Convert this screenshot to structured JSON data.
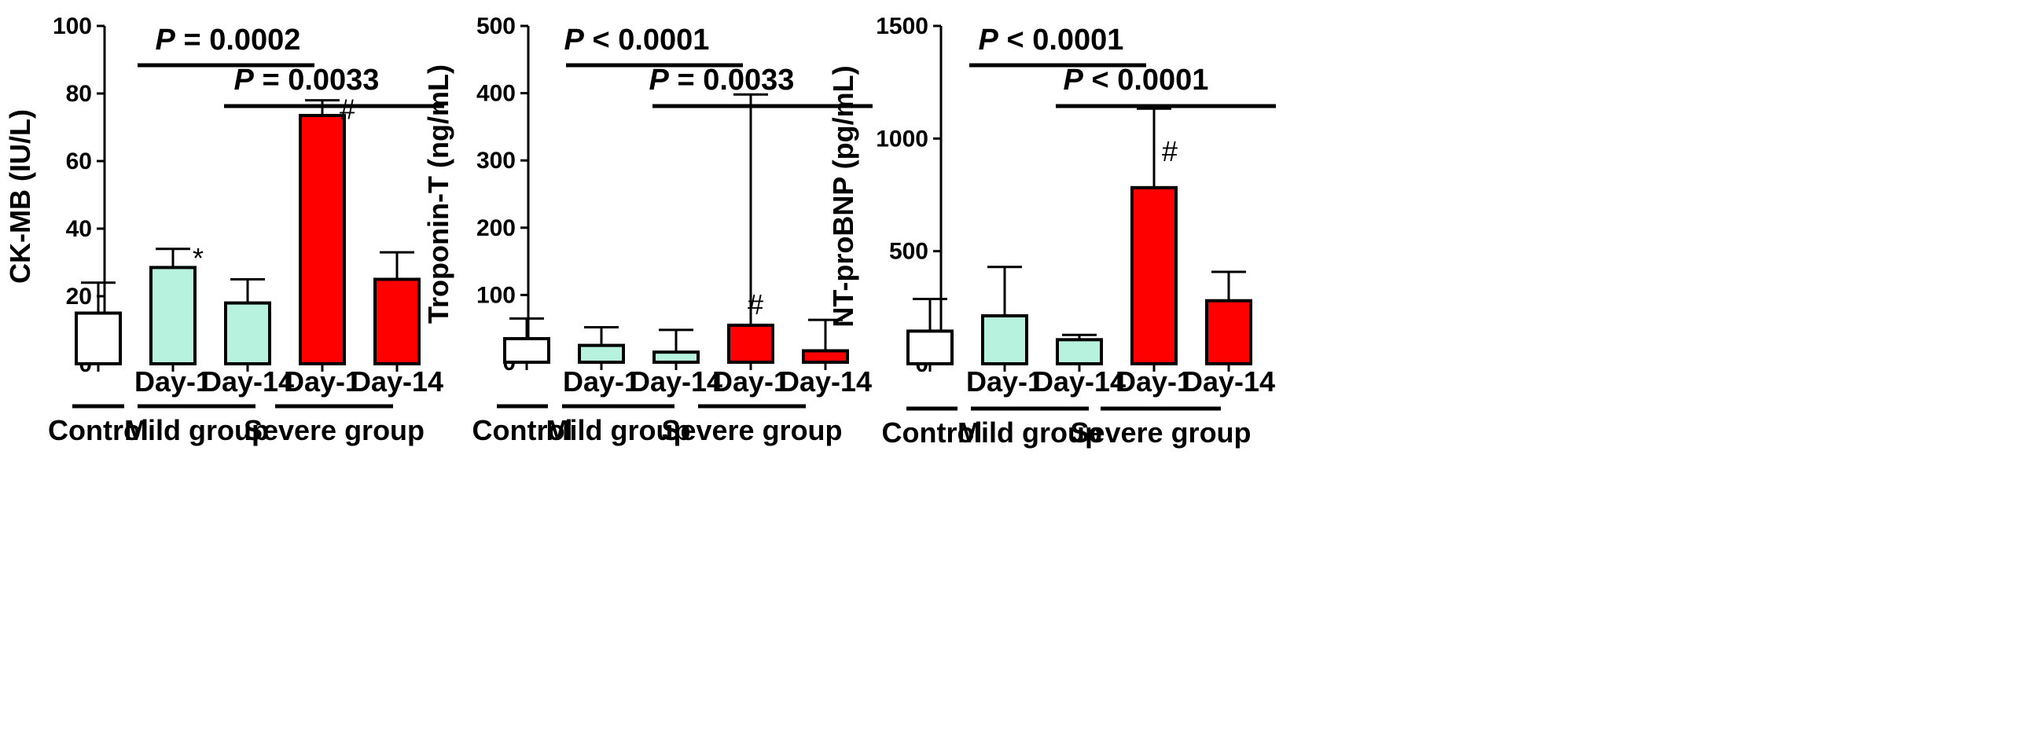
{
  "group_labels": {
    "control": "Control",
    "mild": "Mild group",
    "severe": "Severe group"
  },
  "colors": {
    "control": "#ffffff",
    "mild": "#b7f2df",
    "severe": "#ff0000",
    "stroke": "#000000"
  },
  "chart_data": [
    {
      "type": "bar",
      "ylabel": "CK-MB (IU/L)",
      "ylim": [
        0,
        100
      ],
      "yticks": [
        0,
        20,
        40,
        60,
        80,
        100
      ],
      "categories": [
        "",
        "Day-1",
        "Day-14",
        "Day-1",
        "Day-14"
      ],
      "groups": [
        "control",
        "mild",
        "mild",
        "severe",
        "severe"
      ],
      "values": [
        15,
        28.5,
        18,
        73.5,
        25
      ],
      "errors_upper": [
        24,
        34,
        25,
        78,
        33
      ],
      "marks": [
        "",
        "*",
        "",
        "#",
        ""
      ],
      "comparisons": [
        {
          "p_label": "P",
          "p_text": " = 0.0002",
          "from": 1,
          "to": 3
        },
        {
          "p_label": "P",
          "p_text": " = 0.0033",
          "from": 2,
          "to": 4
        }
      ]
    },
    {
      "type": "bar",
      "ylabel": "Troponin-T (ng/mL)",
      "ylim": [
        0,
        500
      ],
      "yticks": [
        0,
        100,
        200,
        300,
        400,
        500
      ],
      "categories": [
        "",
        "Day-1",
        "Day-14",
        "Day-1",
        "Day-14"
      ],
      "groups": [
        "control",
        "mild",
        "mild",
        "severe",
        "severe"
      ],
      "values": [
        35,
        25,
        15,
        55,
        17
      ],
      "errors_upper": [
        65,
        52,
        48,
        398,
        63
      ],
      "marks": [
        "",
        "",
        "",
        "#",
        ""
      ],
      "comparisons": [
        {
          "p_label": "P",
          "p_text": " < 0.0001",
          "from": 1,
          "to": 3
        },
        {
          "p_label": "P",
          "p_text": " = 0.0033",
          "from": 2,
          "to": 4
        }
      ]
    },
    {
      "type": "bar",
      "ylabel": "NT-proBNP (pg/mL)",
      "ylim": [
        0,
        1500
      ],
      "yticks": [
        0,
        500,
        1000,
        1500
      ],
      "categories": [
        "",
        "Day-1",
        "Day-14",
        "Day-1",
        "Day-14"
      ],
      "groups": [
        "control",
        "mild",
        "mild",
        "severe",
        "severe"
      ],
      "values": [
        145,
        213,
        107,
        782,
        280
      ],
      "errors_upper": [
        288,
        430,
        128,
        1133,
        408
      ],
      "marks": [
        "",
        "",
        "",
        "#",
        ""
      ],
      "comparisons": [
        {
          "p_label": "P",
          "p_text": " < 0.0001",
          "from": 1,
          "to": 3
        },
        {
          "p_label": "P",
          "p_text": " < 0.0001",
          "from": 2,
          "to": 4
        }
      ]
    }
  ]
}
